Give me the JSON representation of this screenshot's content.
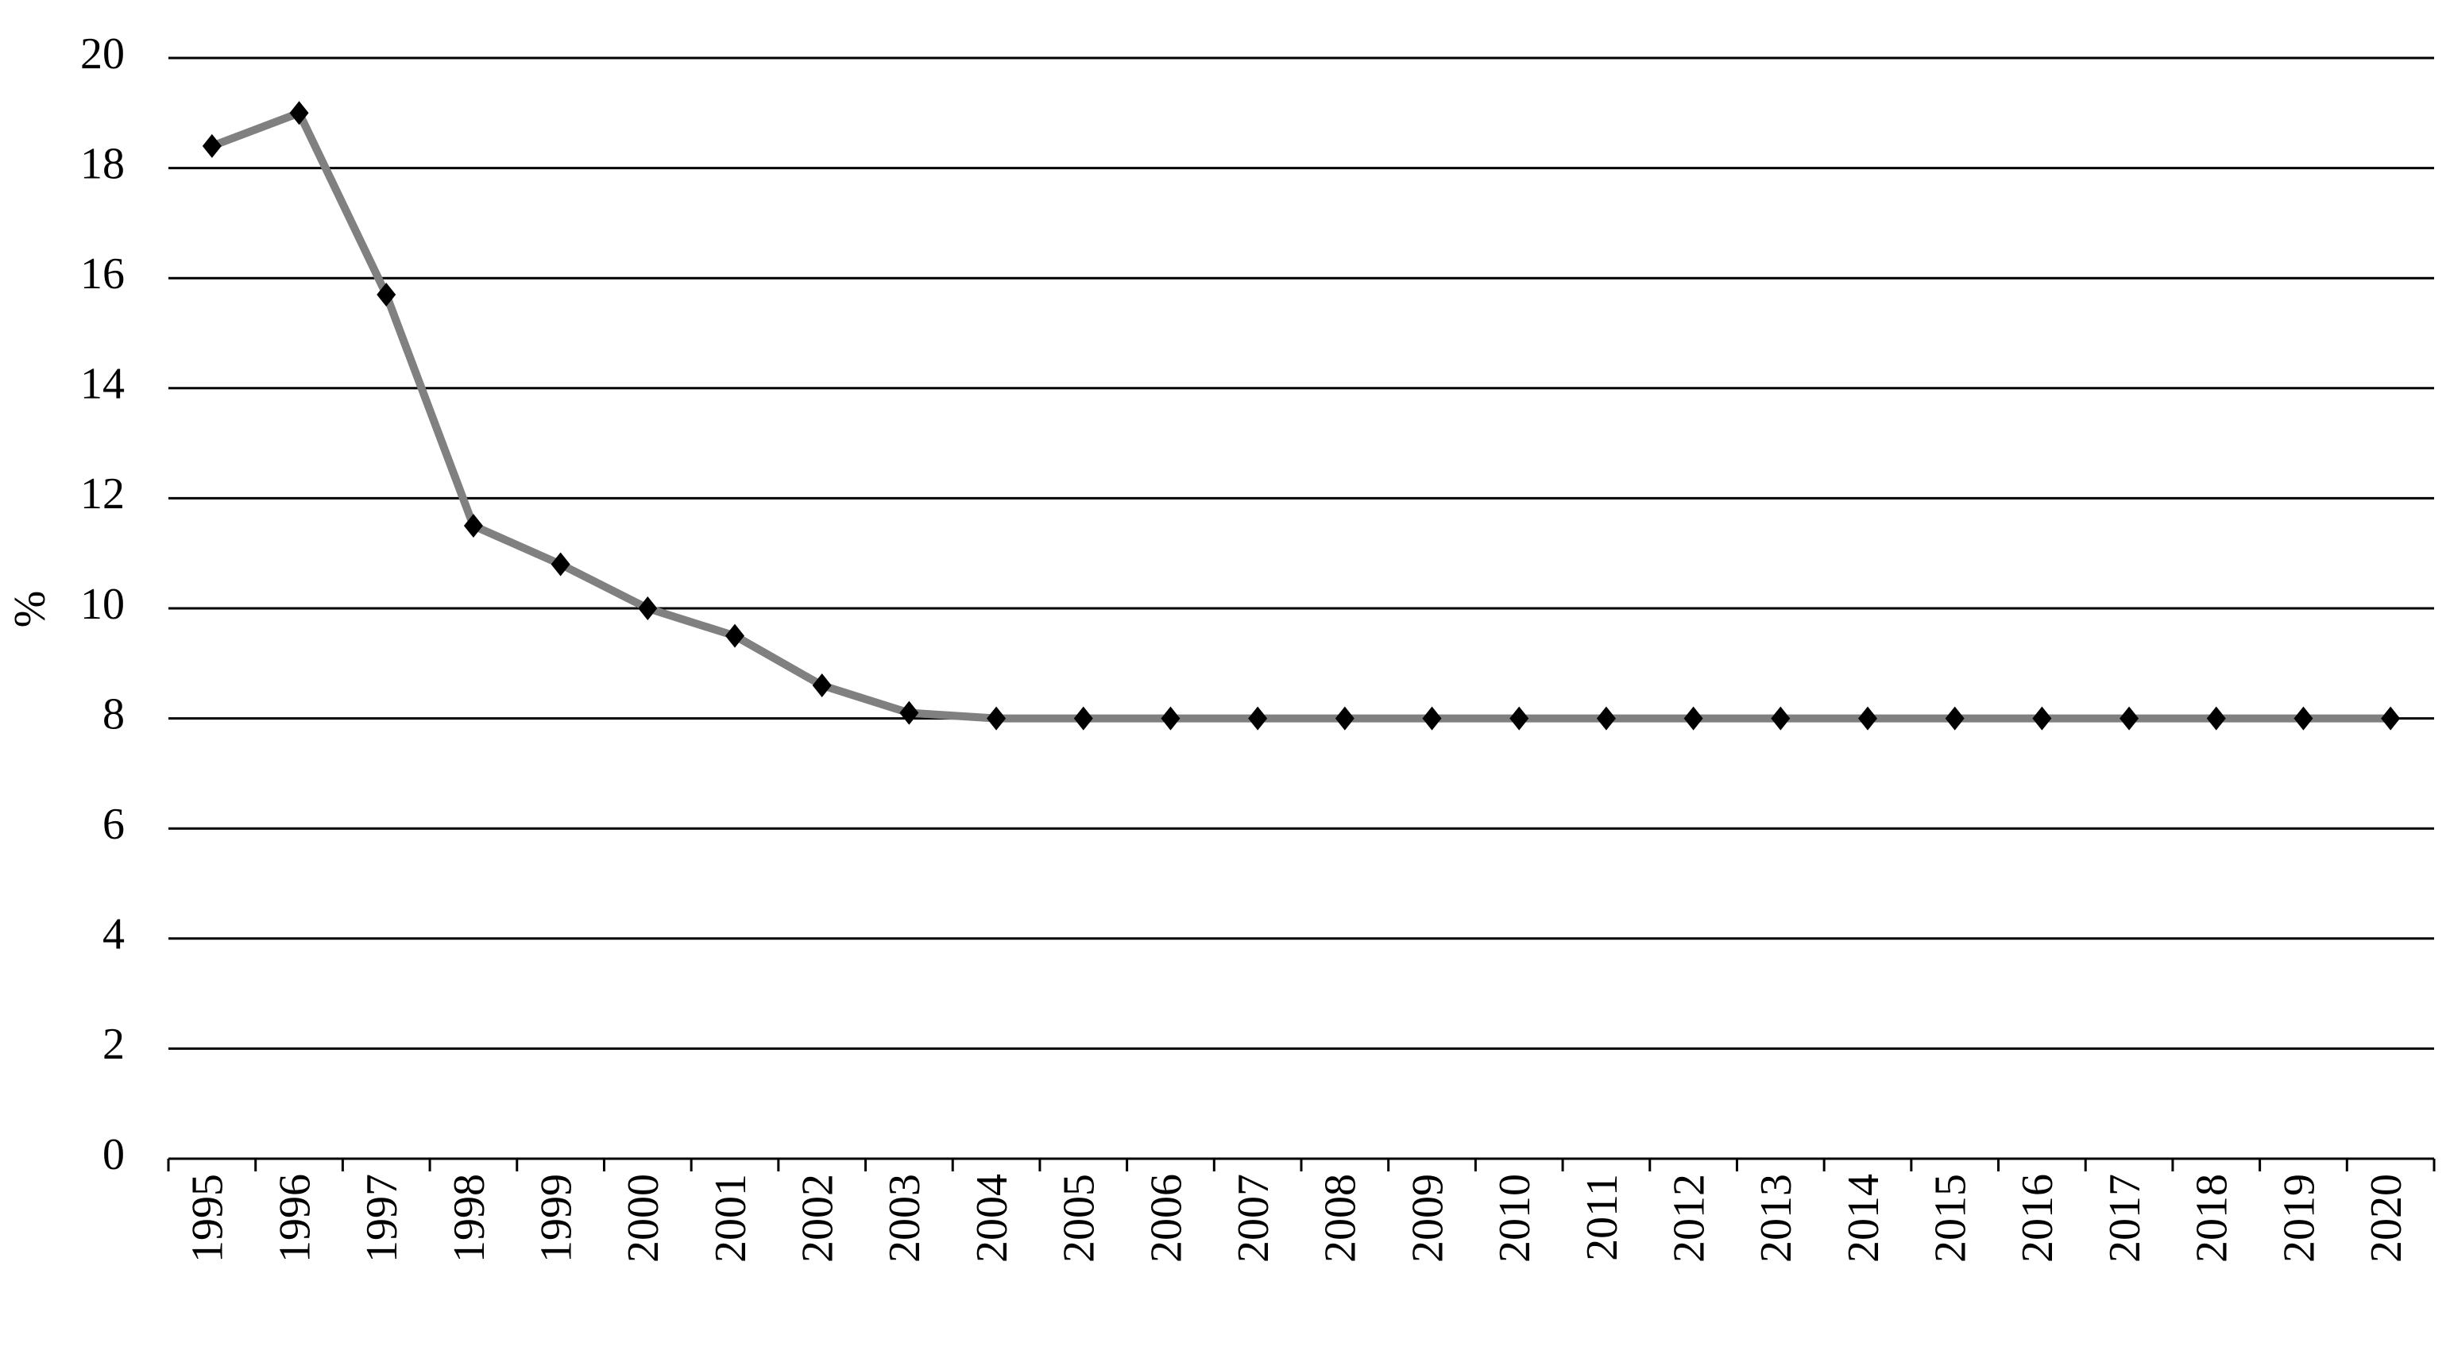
{
  "chart_data": {
    "type": "line",
    "y_label": "%",
    "categories": [
      "1995",
      "1996",
      "1997",
      "1998",
      "1999",
      "2000",
      "2001",
      "2002",
      "2003",
      "2004",
      "2005",
      "2006",
      "2007",
      "2008",
      "2009",
      "2010",
      "2011",
      "2012",
      "2013",
      "2014",
      "2015",
      "2016",
      "2017",
      "2018",
      "2019",
      "2020"
    ],
    "series": [
      {
        "color": "#808080",
        "values": [
          18.4,
          19.0,
          15.7,
          11.5,
          10.8,
          10.0,
          9.5,
          8.6,
          8.1,
          8.0,
          8.0,
          8.0,
          8.0,
          8.0,
          8.0,
          8.0,
          8.0,
          8.0,
          8.0,
          8.0,
          8.0,
          8.0,
          8.0,
          8.0,
          8.0,
          8.0
        ]
      }
    ],
    "ylim": [
      0,
      20
    ],
    "yticks": [
      0,
      2,
      4,
      6,
      8,
      10,
      12,
      14,
      16,
      18,
      20
    ],
    "grid": true,
    "marker_color": "#000000"
  }
}
